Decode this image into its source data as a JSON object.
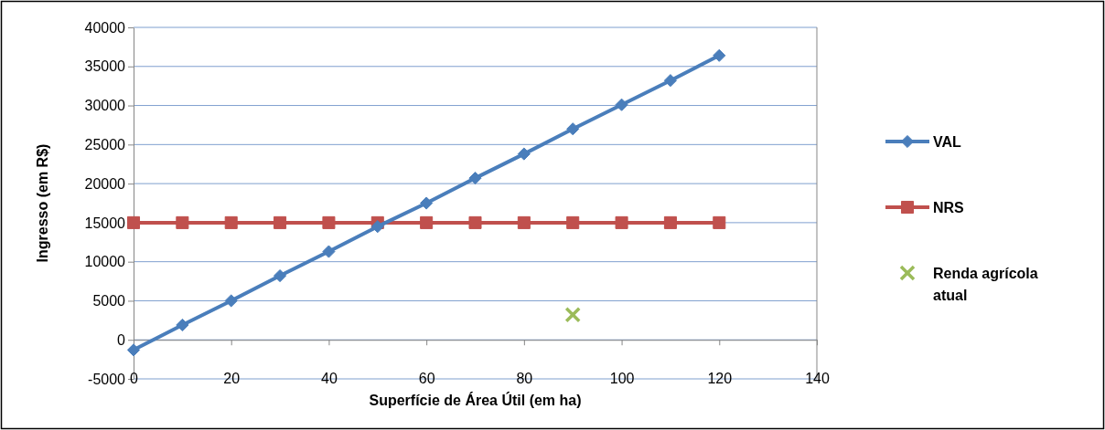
{
  "chart_data": {
    "type": "line",
    "xlabel": "Superfície de Área Útil (em ha)",
    "ylabel": "Ingresso (em R$)",
    "xlim": [
      0,
      140
    ],
    "xticks": [
      0,
      20,
      40,
      60,
      80,
      100,
      120,
      140
    ],
    "ylim": [
      -5000,
      40000
    ],
    "yticks": [
      -5000,
      0,
      5000,
      10000,
      15000,
      20000,
      25000,
      30000,
      35000,
      40000
    ],
    "grid": "y",
    "legend": "right",
    "series": [
      {
        "name": "VAL",
        "color": "#4a7ebb",
        "marker": "diamond",
        "x": [
          0,
          10,
          20,
          30,
          40,
          50,
          60,
          70,
          80,
          90,
          100,
          110,
          120
        ],
        "values": [
          -1300,
          1900,
          5000,
          8200,
          11300,
          14500,
          17500,
          20700,
          23800,
          27000,
          30100,
          33200,
          36400
        ]
      },
      {
        "name": "NRS",
        "color": "#c0504d",
        "marker": "square",
        "x": [
          0,
          10,
          20,
          30,
          40,
          50,
          60,
          70,
          80,
          90,
          100,
          110,
          120
        ],
        "values": [
          15000,
          15000,
          15000,
          15000,
          15000,
          15000,
          15000,
          15000,
          15000,
          15000,
          15000,
          15000,
          15000
        ]
      },
      {
        "name": "Renda agrícola atual",
        "type": "scatter",
        "color": "#9bbb59",
        "marker": "cross",
        "x": [
          90
        ],
        "values": [
          3200
        ]
      }
    ]
  }
}
